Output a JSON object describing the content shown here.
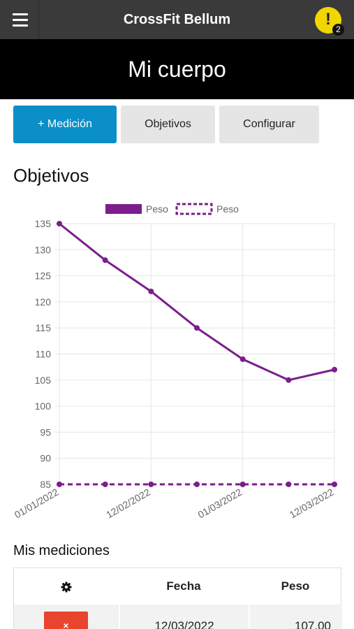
{
  "app": {
    "title": "CrossFit Bellum",
    "notification_count": "2",
    "alert_glyph": "!"
  },
  "page": {
    "title": "Mi cuerpo"
  },
  "tabs": [
    {
      "label": "+ Medición",
      "active": true
    },
    {
      "label": "Objetivos",
      "active": false
    },
    {
      "label": "Configurar",
      "active": false
    }
  ],
  "objectives": {
    "title": "Objetivos"
  },
  "chart_data": {
    "type": "line",
    "x_tick_labels": [
      "01/01/2022",
      "12/02/2022",
      "01/03/2022",
      "12/03/2022"
    ],
    "y_ticks": [
      85,
      90,
      95,
      100,
      105,
      110,
      115,
      120,
      125,
      130,
      135
    ],
    "ylim": [
      85,
      135
    ],
    "grid": true,
    "legend_position": "top",
    "series": [
      {
        "name": "Peso",
        "style": "solid",
        "color": "#7b1e8c",
        "values": [
          135,
          128,
          122,
          115,
          109,
          105,
          107
        ]
      },
      {
        "name": "Peso",
        "style": "dashed",
        "color": "#7b1e8c",
        "values": [
          85,
          85,
          85,
          85,
          85,
          85,
          85
        ]
      }
    ]
  },
  "measurements": {
    "title": "Mis mediciones",
    "headers": {
      "settings_icon": "gear-icon",
      "date": "Fecha",
      "weight": "Peso"
    },
    "rows": [
      {
        "date": "12/03/2022",
        "weight": "107.00",
        "delete_glyph": "×"
      }
    ]
  },
  "colors": {
    "accent": "#0b8fc8",
    "topbar": "#3a3a3a",
    "alert": "#f2d600",
    "delete": "#e8442e",
    "series": "#7b1e8c"
  }
}
